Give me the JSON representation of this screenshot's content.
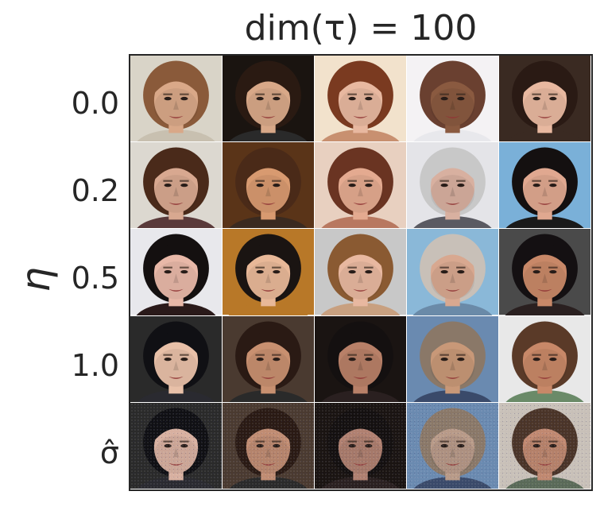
{
  "figure": {
    "title": "dim(τ) = 100",
    "y_axis_label": "η",
    "rows": [
      {
        "label": "0.0"
      },
      {
        "label": "0.2"
      },
      {
        "label": "0.5"
      },
      {
        "label": "1.0"
      },
      {
        "label": "σ̂"
      }
    ],
    "columns": 5
  },
  "samples": [
    [
      {
        "bg": "#d9d4c8",
        "skin": "#d9a888",
        "hair": "#8a5a3a",
        "shirt": "#c8c0b0"
      },
      {
        "bg": "#1a1410",
        "skin": "#d8a888",
        "hair": "#2a1a12",
        "shirt": "#2a2a2a"
      },
      {
        "bg": "#f2e2cc",
        "skin": "#e8b8a0",
        "hair": "#7a3a20",
        "shirt": "#c89070"
      },
      {
        "bg": "#f4f2f4",
        "skin": "#8a5a40",
        "hair": "#6a4030",
        "shirt": "#e8e8ec"
      },
      {
        "bg": "#3a2a22",
        "skin": "#e8b8a0",
        "hair": "#2a1a14",
        "shirt": "#3a2a22"
      }
    ],
    [
      {
        "bg": "#dcd8d0",
        "skin": "#d8a890",
        "hair": "#4a2a1a",
        "shirt": "#5a3a3a"
      },
      {
        "bg": "#5a3418",
        "skin": "#d89a70",
        "hair": "#4a2a18",
        "shirt": "#3a2a20"
      },
      {
        "bg": "#e8d0c0",
        "skin": "#e4aa90",
        "hair": "#6a3422",
        "shirt": "#b87860"
      },
      {
        "bg": "#e4e4e8",
        "skin": "#d8b0a0",
        "hair": "#c8c8c8",
        "shirt": "#5a5a62"
      },
      {
        "bg": "#7ab0d8",
        "skin": "#e0a890",
        "hair": "#141010",
        "shirt": "#1a1a1a"
      }
    ],
    [
      {
        "bg": "#e8e8ec",
        "skin": "#e8b8a8",
        "hair": "#141010",
        "shirt": "#2a1a1a"
      },
      {
        "bg": "#b87828",
        "skin": "#e8b898",
        "hair": "#1a1412",
        "shirt": "#b87828"
      },
      {
        "bg": "#c8c8c8",
        "skin": "#e8b8a0",
        "hair": "#8a5a32",
        "shirt": "#c8a080"
      },
      {
        "bg": "#8ab8d8",
        "skin": "#d8a890",
        "hair": "#c8c0b8",
        "shirt": "#6a8aa8"
      },
      {
        "bg": "#4a4a4a",
        "skin": "#c88868",
        "hair": "#141012",
        "shirt": "#2a2020"
      }
    ],
    [
      {
        "bg": "#2a2a2a",
        "skin": "#e8c0a8",
        "hair": "#101014",
        "shirt": "#2a2a30"
      },
      {
        "bg": "#4a3a30",
        "skin": "#c89070",
        "hair": "#2a1a14",
        "shirt": "#2a2a2a"
      },
      {
        "bg": "#1a1412",
        "skin": "#b88068",
        "hair": "#141010",
        "shirt": "#2a2020"
      },
      {
        "bg": "#6a8ab0",
        "skin": "#c89878",
        "hair": "#8a7868",
        "shirt": "#3a4a6a"
      },
      {
        "bg": "#e8e8e8",
        "skin": "#c88868",
        "hair": "#5a3a28",
        "shirt": "#6a8a68"
      }
    ],
    [
      {
        "bg": "#2a2a2a",
        "skin": "#d8b0a0",
        "hair": "#101014",
        "shirt": "#2a2a30"
      },
      {
        "bg": "#4a3a30",
        "skin": "#c08c72",
        "hair": "#2a1a14",
        "shirt": "#2a2a2a"
      },
      {
        "bg": "#1a1412",
        "skin": "#b08070",
        "hair": "#141010",
        "shirt": "#2a2020"
      },
      {
        "bg": "#6a8ab0",
        "skin": "#b89a88",
        "hair": "#8a7868",
        "shirt": "#3a4a6a"
      },
      {
        "bg": "#c8c0b8",
        "skin": "#c08870",
        "hair": "#4a3428",
        "shirt": "#5a6a58"
      }
    ]
  ]
}
